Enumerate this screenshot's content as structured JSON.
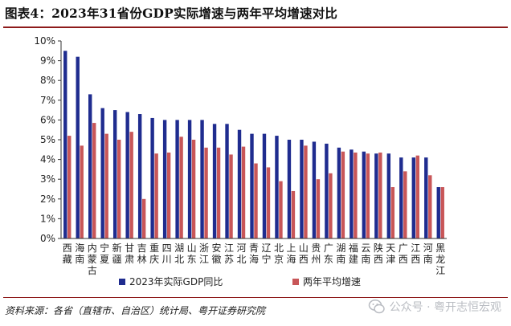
{
  "header": {
    "title": "图表4：2023年31省份GDP实际增速与两年平均增速对比"
  },
  "footer": {
    "source": "资料来源：各省（直辖市、自治区）统计局、粤开证券研究院",
    "watermark": "公众号 · 粤开志恒宏观"
  },
  "colors": {
    "series1": "#1f2c8f",
    "series2": "#c85658",
    "rule": "#8e1b1b"
  },
  "chart_data": {
    "type": "bar",
    "title": "图表4：2023年31省份GDP实际增速与两年平均增速对比",
    "xlabel": "",
    "ylabel": "",
    "ylim": [
      0,
      10
    ],
    "ytick_step": 1,
    "ytick_format": "percent",
    "grid": false,
    "legend_position": "bottom",
    "categories": [
      "西藏",
      "海南",
      "内蒙古",
      "宁夏",
      "新疆",
      "甘肃",
      "吉林",
      "重庆",
      "四川",
      "湖北",
      "山东",
      "浙江",
      "安徽",
      "江苏",
      "河北",
      "青海",
      "辽宁",
      "北京",
      "上海",
      "山西",
      "贵州",
      "广东",
      "湖南",
      "福建",
      "云南",
      "陕西",
      "天津",
      "广西",
      "江西",
      "河南",
      "黑龙江"
    ],
    "series": [
      {
        "name": "2023年实际GDP同比",
        "color": "#1f2c8f",
        "values": [
          9.5,
          9.2,
          7.3,
          6.6,
          6.5,
          6.4,
          6.3,
          6.1,
          6.0,
          6.0,
          6.0,
          6.0,
          5.8,
          5.8,
          5.5,
          5.3,
          5.3,
          5.2,
          5.0,
          5.0,
          4.9,
          4.8,
          4.6,
          4.5,
          4.4,
          4.3,
          4.3,
          4.1,
          4.1,
          4.1,
          2.6
        ]
      },
      {
        "name": "两年平均增速",
        "color": "#c85658",
        "values": [
          5.2,
          4.7,
          5.85,
          5.3,
          5.0,
          5.4,
          2.0,
          4.3,
          4.35,
          5.15,
          5.0,
          4.6,
          4.6,
          4.25,
          4.65,
          3.8,
          3.6,
          2.9,
          2.4,
          4.7,
          3.0,
          3.3,
          4.4,
          4.35,
          4.3,
          4.35,
          2.6,
          3.4,
          4.2,
          3.2,
          2.6
        ]
      }
    ]
  }
}
